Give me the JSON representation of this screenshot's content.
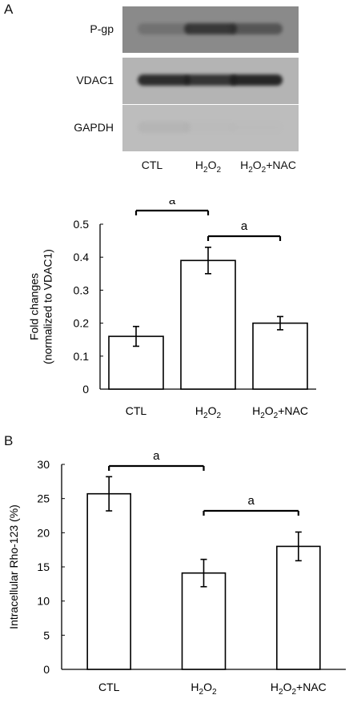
{
  "panel_a": {
    "letter": "A",
    "blot": {
      "rows": [
        {
          "label": "P-gp",
          "bands": [
            0.25,
            0.85,
            0.55
          ],
          "bg": "#8a8a8a",
          "band_color": "#2a2a2a"
        },
        {
          "label": "VDAC1",
          "bands": [
            0.9,
            0.85,
            0.95
          ],
          "bg": "#b4b4b4",
          "band_color": "#1f1f1f"
        },
        {
          "label": "GAPDH",
          "bands": [
            0.15,
            0.03,
            0.02
          ],
          "bg": "#bdbdbd",
          "band_color": "#8a8a8a"
        }
      ],
      "lanes": [
        {
          "base": "CTL",
          "parts": [
            {
              "t": "CTL",
              "sub": false
            }
          ]
        },
        {
          "base": "H2O2",
          "parts": [
            {
              "t": "H",
              "sub": false
            },
            {
              "t": "2",
              "sub": true
            },
            {
              "t": "O",
              "sub": false
            },
            {
              "t": "2",
              "sub": true
            }
          ]
        },
        {
          "base": "H2O2+NAC",
          "parts": [
            {
              "t": "H",
              "sub": false
            },
            {
              "t": "2",
              "sub": true
            },
            {
              "t": "O",
              "sub": false
            },
            {
              "t": "2",
              "sub": true
            },
            {
              "t": "+NAC",
              "sub": false
            }
          ]
        }
      ]
    }
  },
  "panel_b": {
    "letter": "B"
  },
  "chart_data": [
    {
      "type": "bar",
      "categories": [
        "CTL",
        "H2O2",
        "H2O2+NAC"
      ],
      "values": [
        0.16,
        0.39,
        0.2
      ],
      "errors": [
        0.03,
        0.04,
        0.02
      ],
      "xlabel": "",
      "ylabel": "Fold changes (normalized to VDAC1)",
      "ylabel_lines": [
        "Fold changes",
        "(normalized to VDAC1)"
      ],
      "ylim": [
        0,
        0.5
      ],
      "yticks": [
        "0",
        "0.1",
        "0.2",
        "0.3",
        "0.4",
        "0.5"
      ],
      "grid": false,
      "significance": [
        {
          "from": 0,
          "to": 1,
          "label": "a"
        },
        {
          "from": 1,
          "to": 2,
          "label": "a"
        }
      ]
    },
    {
      "type": "bar",
      "categories": [
        "CTL",
        "H2O2",
        "H2O2+NAC"
      ],
      "values": [
        25.7,
        14.1,
        18.0
      ],
      "errors": [
        2.5,
        2.0,
        2.1
      ],
      "xlabel": "",
      "ylabel": "Intracellular Rho-123 (%)",
      "ylabel_lines": [
        "Intracellular Rho-123 (%)"
      ],
      "ylim": [
        0,
        30
      ],
      "yticks": [
        "0",
        "5",
        "10",
        "15",
        "20",
        "25",
        "30"
      ],
      "grid": false,
      "significance": [
        {
          "from": 0,
          "to": 1,
          "label": "a"
        },
        {
          "from": 1,
          "to": 2,
          "label": "a"
        }
      ]
    }
  ]
}
